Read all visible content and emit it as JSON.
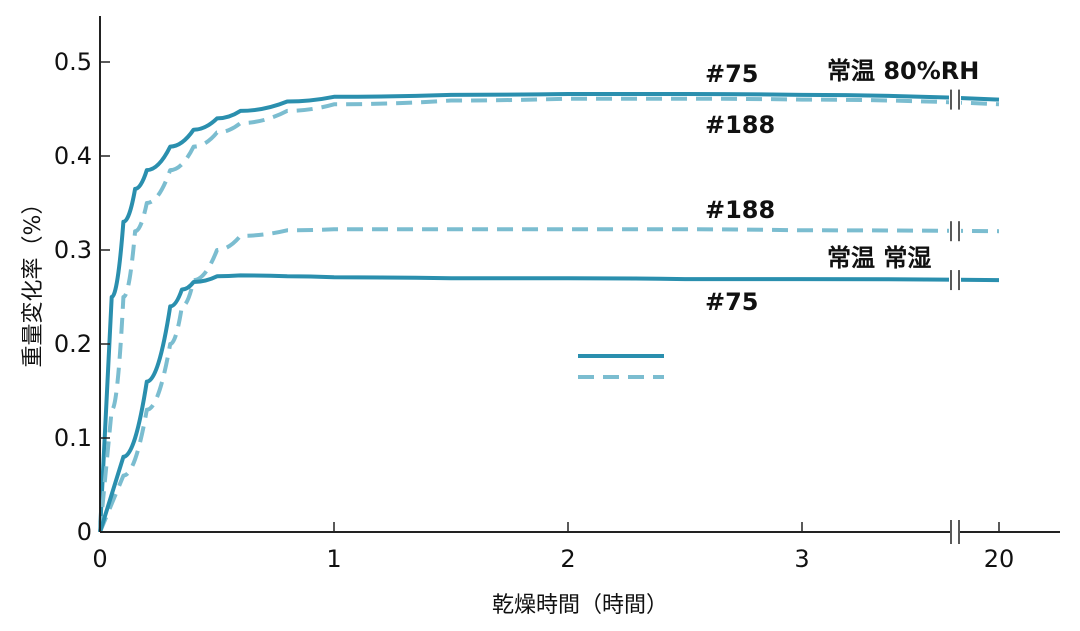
{
  "chart_data": {
    "type": "line",
    "xlabel": "乾燥時間（時間）",
    "ylabel": "重量変化率（%）",
    "ylim": [
      0,
      0.5
    ],
    "xlim": [
      0,
      20
    ],
    "x_axis_break": {
      "from": 3,
      "to": 20
    },
    "x_ticks": [
      {
        "value": 0,
        "label": "0"
      },
      {
        "value": 1,
        "label": "1"
      },
      {
        "value": 2,
        "label": "2"
      },
      {
        "value": 3,
        "label": "3"
      },
      {
        "value": 20,
        "label": "20"
      }
    ],
    "y_ticks": [
      {
        "value": 0,
        "label": "0"
      },
      {
        "value": 0.1,
        "label": "0.1"
      },
      {
        "value": 0.2,
        "label": "0.2"
      },
      {
        "value": 0.3,
        "label": "0.3"
      },
      {
        "value": 0.4,
        "label": "0.4"
      },
      {
        "value": 0.5,
        "label": "0.5"
      }
    ],
    "grid": false,
    "legend": {
      "position": "center",
      "solid_label": "",
      "dashed_label": ""
    },
    "annotations": {
      "group_high": "常温 80%RH",
      "group_low": "常温 常湿",
      "high_solid": "#75",
      "high_dashed": "#188",
      "low_dashed": "#188",
      "low_solid": "#75"
    },
    "series": [
      {
        "style": "solid",
        "color": "#2a8fae",
        "x": [
          0,
          0.05,
          0.1,
          0.15,
          0.2,
          0.3,
          0.4,
          0.5,
          0.6,
          0.8,
          1.0,
          1.5,
          2.0,
          2.5,
          3.0,
          20.0
        ],
        "y": [
          0,
          0.25,
          0.33,
          0.365,
          0.385,
          0.41,
          0.428,
          0.44,
          0.448,
          0.458,
          0.463,
          0.465,
          0.466,
          0.466,
          0.465,
          0.46
        ]
      },
      {
        "style": "dashed",
        "color": "#7bbdd0",
        "x": [
          0,
          0.05,
          0.1,
          0.15,
          0.2,
          0.3,
          0.4,
          0.5,
          0.6,
          0.8,
          1.0,
          1.5,
          2.0,
          2.5,
          3.0,
          20.0
        ],
        "y": [
          0,
          0.13,
          0.25,
          0.32,
          0.35,
          0.385,
          0.41,
          0.425,
          0.435,
          0.448,
          0.455,
          0.459,
          0.461,
          0.461,
          0.46,
          0.455
        ]
      },
      {
        "style": "dashed",
        "color": "#7bbdd0",
        "x": [
          0,
          0.1,
          0.2,
          0.3,
          0.35,
          0.4,
          0.5,
          0.6,
          0.8,
          1.0,
          1.5,
          2.0,
          2.5,
          3.0,
          20.0
        ],
        "y": [
          0,
          0.06,
          0.13,
          0.2,
          0.24,
          0.268,
          0.3,
          0.315,
          0.321,
          0.322,
          0.322,
          0.322,
          0.322,
          0.321,
          0.32
        ]
      },
      {
        "style": "solid",
        "color": "#2a8fae",
        "x": [
          0,
          0.1,
          0.2,
          0.3,
          0.35,
          0.4,
          0.5,
          0.6,
          0.8,
          1.0,
          1.5,
          2.0,
          2.5,
          3.0,
          20.0
        ],
        "y": [
          0,
          0.08,
          0.16,
          0.24,
          0.258,
          0.266,
          0.272,
          0.273,
          0.272,
          0.271,
          0.27,
          0.27,
          0.269,
          0.269,
          0.268
        ]
      }
    ]
  }
}
